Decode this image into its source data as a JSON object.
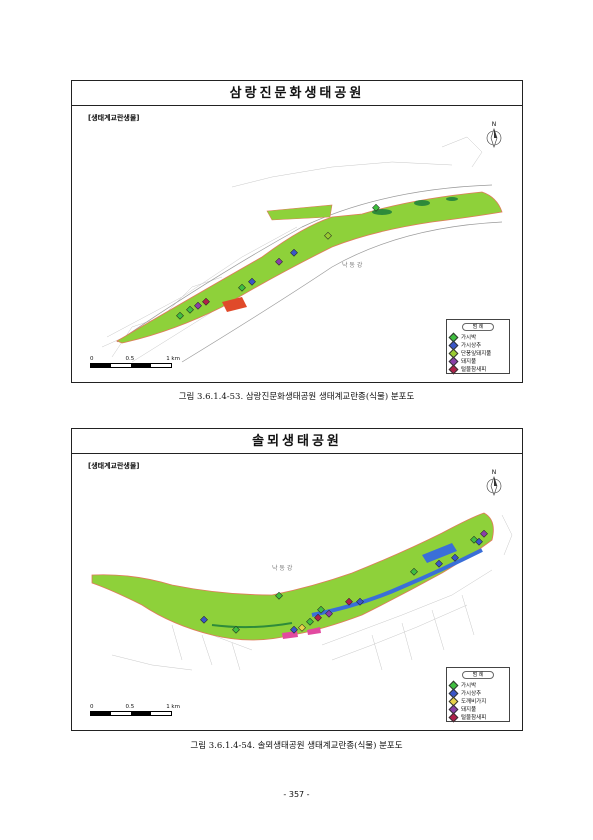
{
  "figures": [
    {
      "map_title": "삼랑진문화생태공원",
      "subtitle": "[생태계교란생물]",
      "north": "N",
      "river_label": "낙 동 강",
      "legend_title": "범 례",
      "legend": [
        {
          "label": "가시박",
          "color": "#3fbf3f"
        },
        {
          "label": "가시상추",
          "color": "#3a56c8"
        },
        {
          "label": "단풍잎돼지풀",
          "color": "#9acd32"
        },
        {
          "label": "돼지풀",
          "color": "#8a3fa8"
        },
        {
          "label": "털물참새피",
          "color": "#b0204a"
        }
      ],
      "scale_labels": [
        "0",
        "0.5",
        "1 km"
      ],
      "caption": "그림 3.6.1.4-53. 삼랑진문화생태공원 생태계교란종(식물) 분포도"
    },
    {
      "map_title": "솔뫼생태공원",
      "subtitle": "[생태계교란생물]",
      "north": "N",
      "river_label": "낙 동 강",
      "legend_title": "범 례",
      "legend": [
        {
          "label": "가시박",
          "color": "#3fbf3f"
        },
        {
          "label": "가시상추",
          "color": "#3a56c8"
        },
        {
          "label": "도깨비가지",
          "color": "#e8d24a"
        },
        {
          "label": "돼지풀",
          "color": "#8a3fa8"
        },
        {
          "label": "털물참새피",
          "color": "#b0204a"
        }
      ],
      "scale_labels": [
        "0",
        "0.5",
        "1 km"
      ],
      "caption": "그림 3.6.1.4-54. 솔뫼생태공원 생태계교란종(식물) 분포도"
    }
  ],
  "page_number": "- 357 -"
}
